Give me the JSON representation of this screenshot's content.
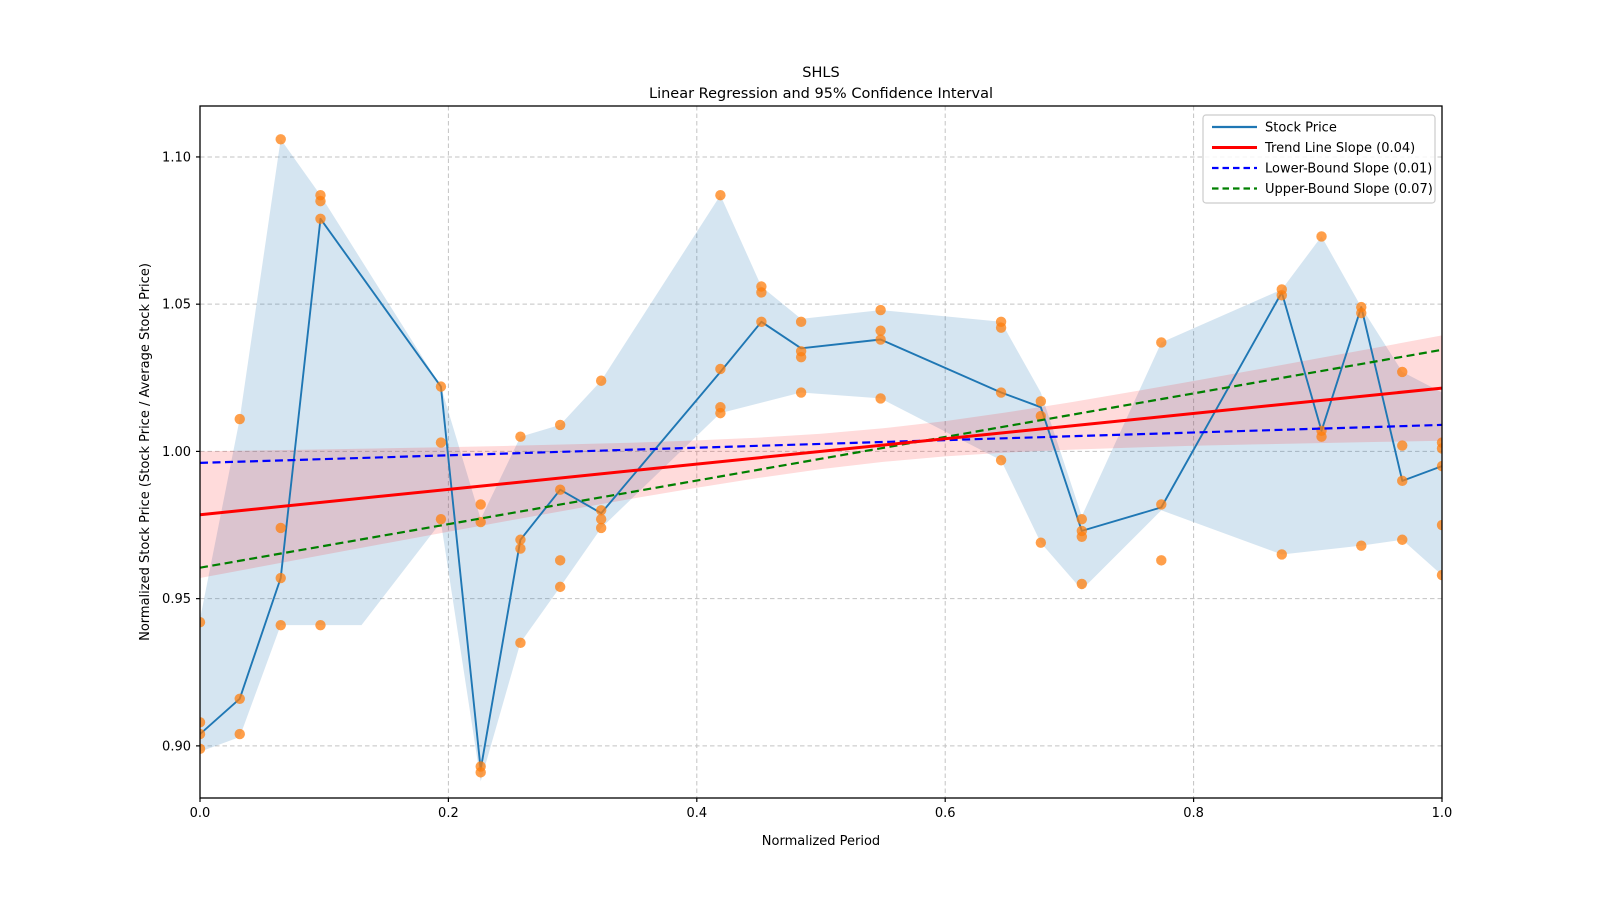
{
  "figure": {
    "title": "SHLS",
    "subtitle": "Linear Regression and 95% Confidence Interval"
  },
  "axes": {
    "xlabel": "Normalized Period",
    "ylabel": "Normalized Stock Price (Stock Price / Average Stock Price)",
    "x_tick_labels": [
      "0.0",
      "0.2",
      "0.4",
      "0.6",
      "0.8",
      "1.0"
    ],
    "y_tick_labels": [
      "0.90",
      "0.95",
      "1.00",
      "1.05",
      "1.10"
    ]
  },
  "legend": {
    "entries": [
      {
        "label": "Stock Price",
        "color": "#1f77b4",
        "dashed": false
      },
      {
        "label": "Trend Line Slope (0.04)",
        "color": "#ff0000",
        "dashed": false
      },
      {
        "label": "Lower-Bound Slope (0.01)",
        "color": "#0000ff",
        "dashed": true
      },
      {
        "label": "Upper-Bound Slope (0.07)",
        "color": "#008000",
        "dashed": true
      }
    ]
  },
  "chart_data": {
    "type": "line",
    "title": "SHLS",
    "subtitle": "Linear Regression and 95% Confidence Interval",
    "xlabel": "Normalized Period",
    "ylabel": "Normalized Stock Price (Stock Price / Average Stock Price)",
    "xlim": [
      0.0,
      1.0
    ],
    "ylim": [
      0.8823,
      1.1173
    ],
    "x_ticks": [
      0.0,
      0.2,
      0.4,
      0.6,
      0.8,
      1.0
    ],
    "y_ticks": [
      0.9,
      0.95,
      1.0,
      1.05,
      1.1
    ],
    "grid": true,
    "legend_position": "upper right",
    "stock_price": {
      "label": "Stock Price",
      "color": "#1f77b4",
      "points": [
        [
          0.0,
          0.904
        ],
        [
          0.032,
          0.916
        ],
        [
          0.065,
          0.957
        ],
        [
          0.097,
          1.079
        ],
        [
          0.194,
          1.022
        ],
        [
          0.226,
          0.892
        ],
        [
          0.258,
          0.97
        ],
        [
          0.29,
          0.987
        ],
        [
          0.323,
          0.979
        ],
        [
          0.419,
          1.027
        ],
        [
          0.452,
          1.044
        ],
        [
          0.484,
          1.035
        ],
        [
          0.548,
          1.038
        ],
        [
          0.645,
          1.02
        ],
        [
          0.677,
          1.015
        ],
        [
          0.71,
          0.973
        ],
        [
          0.774,
          0.981
        ],
        [
          0.871,
          1.054
        ],
        [
          0.903,
          1.007
        ],
        [
          0.935,
          1.049
        ],
        [
          0.968,
          0.99
        ],
        [
          1.0,
          0.995
        ]
      ]
    },
    "scatter": {
      "color": "#ff7f0e",
      "points": [
        [
          0.0,
          0.942
        ],
        [
          0.0,
          0.908
        ],
        [
          0.0,
          0.904
        ],
        [
          0.0,
          0.899
        ],
        [
          0.032,
          1.011
        ],
        [
          0.032,
          0.916
        ],
        [
          0.032,
          0.904
        ],
        [
          0.065,
          1.106
        ],
        [
          0.065,
          0.974
        ],
        [
          0.065,
          0.957
        ],
        [
          0.065,
          0.941
        ],
        [
          0.097,
          1.087
        ],
        [
          0.097,
          1.085
        ],
        [
          0.097,
          1.079
        ],
        [
          0.097,
          0.941
        ],
        [
          0.194,
          1.022
        ],
        [
          0.194,
          1.003
        ],
        [
          0.194,
          0.977
        ],
        [
          0.226,
          0.982
        ],
        [
          0.226,
          0.976
        ],
        [
          0.226,
          0.893
        ],
        [
          0.226,
          0.891
        ],
        [
          0.258,
          1.005
        ],
        [
          0.258,
          0.97
        ],
        [
          0.258,
          0.967
        ],
        [
          0.258,
          0.935
        ],
        [
          0.29,
          1.009
        ],
        [
          0.29,
          0.987
        ],
        [
          0.29,
          0.963
        ],
        [
          0.29,
          0.954
        ],
        [
          0.323,
          1.024
        ],
        [
          0.323,
          0.98
        ],
        [
          0.323,
          0.977
        ],
        [
          0.323,
          0.974
        ],
        [
          0.419,
          1.087
        ],
        [
          0.419,
          1.028
        ],
        [
          0.419,
          1.015
        ],
        [
          0.419,
          1.013
        ],
        [
          0.452,
          1.056
        ],
        [
          0.452,
          1.054
        ],
        [
          0.452,
          1.044
        ],
        [
          0.484,
          1.044
        ],
        [
          0.484,
          1.034
        ],
        [
          0.484,
          1.032
        ],
        [
          0.484,
          1.02
        ],
        [
          0.548,
          1.048
        ],
        [
          0.548,
          1.041
        ],
        [
          0.548,
          1.038
        ],
        [
          0.548,
          1.018
        ],
        [
          0.645,
          1.044
        ],
        [
          0.645,
          1.042
        ],
        [
          0.645,
          1.02
        ],
        [
          0.645,
          0.997
        ],
        [
          0.677,
          1.017
        ],
        [
          0.677,
          1.012
        ],
        [
          0.677,
          0.969
        ],
        [
          0.71,
          0.977
        ],
        [
          0.71,
          0.973
        ],
        [
          0.71,
          0.971
        ],
        [
          0.71,
          0.955
        ],
        [
          0.774,
          1.037
        ],
        [
          0.774,
          0.982
        ],
        [
          0.774,
          0.963
        ],
        [
          0.871,
          1.055
        ],
        [
          0.871,
          1.053
        ],
        [
          0.871,
          0.965
        ],
        [
          0.903,
          1.073
        ],
        [
          0.903,
          1.007
        ],
        [
          0.903,
          1.005
        ],
        [
          0.935,
          1.049
        ],
        [
          0.935,
          1.047
        ],
        [
          0.935,
          0.968
        ],
        [
          0.968,
          1.027
        ],
        [
          0.968,
          1.002
        ],
        [
          0.968,
          0.99
        ],
        [
          0.968,
          0.97
        ],
        [
          1.0,
          1.003
        ],
        [
          1.0,
          1.001
        ],
        [
          1.0,
          0.995
        ],
        [
          1.0,
          0.975
        ],
        [
          1.0,
          0.958
        ]
      ]
    },
    "trend_line": {
      "label": "Trend Line Slope (0.04)",
      "slope_shown": "0.04",
      "color": "#ff0000",
      "start": [
        0.0,
        0.9785
      ],
      "end": [
        1.0,
        1.0215
      ]
    },
    "lower_bound": {
      "label": "Lower-Bound Slope (0.01)",
      "slope_shown": "0.01",
      "color": "#0000ff",
      "start": [
        0.0,
        0.9961
      ],
      "end": [
        1.0,
        1.009
      ]
    },
    "upper_bound": {
      "label": "Upper-Bound Slope (0.07)",
      "slope_shown": "0.07",
      "color": "#008000",
      "start": [
        0.0,
        0.9605
      ],
      "end": [
        1.0,
        1.0345
      ]
    },
    "minmax_band": {
      "color": "#1f77b4",
      "opacity": 0.19,
      "upper": [
        [
          0.0,
          0.943
        ],
        [
          0.032,
          1.011
        ],
        [
          0.065,
          1.106
        ],
        [
          0.097,
          1.087
        ],
        [
          0.194,
          1.022
        ],
        [
          0.226,
          0.977
        ],
        [
          0.258,
          1.005
        ],
        [
          0.29,
          1.009
        ],
        [
          0.323,
          1.024
        ],
        [
          0.419,
          1.087
        ],
        [
          0.452,
          1.056
        ],
        [
          0.484,
          1.045
        ],
        [
          0.548,
          1.048
        ],
        [
          0.645,
          1.044
        ],
        [
          0.677,
          1.02
        ],
        [
          0.71,
          0.978
        ],
        [
          0.774,
          1.037
        ],
        [
          0.871,
          1.055
        ],
        [
          0.903,
          1.073
        ],
        [
          0.935,
          1.049
        ],
        [
          0.968,
          1.027
        ],
        [
          1.0,
          1.02
        ]
      ],
      "lower": [
        [
          0.0,
          0.898
        ],
        [
          0.032,
          0.903
        ],
        [
          0.065,
          0.941
        ],
        [
          0.13,
          0.941
        ],
        [
          0.194,
          0.976
        ],
        [
          0.226,
          0.888
        ],
        [
          0.258,
          0.935
        ],
        [
          0.29,
          0.954
        ],
        [
          0.323,
          0.974
        ],
        [
          0.419,
          1.013
        ],
        [
          0.484,
          1.02
        ],
        [
          0.548,
          1.018
        ],
        [
          0.645,
          0.997
        ],
        [
          0.677,
          0.969
        ],
        [
          0.71,
          0.953
        ],
        [
          0.774,
          0.98
        ],
        [
          0.871,
          0.965
        ],
        [
          0.935,
          0.968
        ],
        [
          0.968,
          0.97
        ],
        [
          1.0,
          0.958
        ]
      ]
    },
    "ci_band": {
      "color": "#ff0000",
      "opacity": 0.14,
      "halfwidth_a": 3.245e-05,
      "halfwidth_b": 0.0014208,
      "halfwidth_center": 0.55
    }
  },
  "style": {
    "grid_color": "#c3c3c3",
    "spine_color": "#000000",
    "background": "#ffffff",
    "scatter_opacity": 0.75
  }
}
